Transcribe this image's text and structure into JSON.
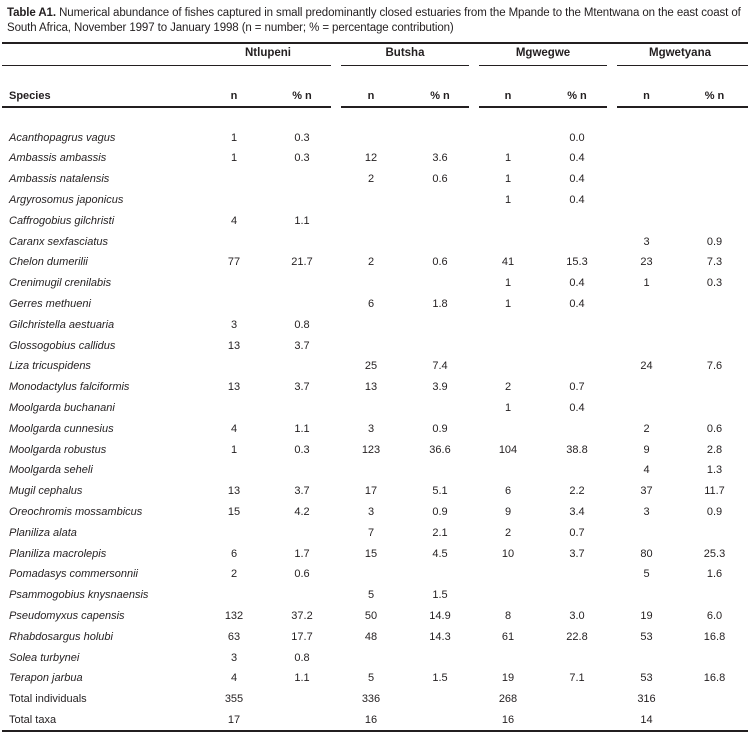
{
  "caption": {
    "label": "Table A1.",
    "text": "Numerical abundance of fishes captured in small predominantly closed estuaries from the Mpande to the Mtentwana on the east coast of South Africa, November 1997 to January 1998 (n = number; % = percentage contribution)"
  },
  "table": {
    "species_header": "Species",
    "groups": [
      {
        "name": "Ntlupeni"
      },
      {
        "name": "Butsha"
      },
      {
        "name": "Mgwegwe"
      },
      {
        "name": "Mgwetyana"
      }
    ],
    "subheaders": {
      "n": "n",
      "pct": "% n"
    },
    "rows": [
      {
        "species": "Acanthopagrus vagus",
        "italic": true,
        "values": [
          "1",
          "0.3",
          "",
          "",
          "",
          "0.0",
          "",
          ""
        ]
      },
      {
        "species": "Ambassis ambassis",
        "italic": true,
        "values": [
          "1",
          "0.3",
          "12",
          "3.6",
          "1",
          "0.4",
          "",
          ""
        ]
      },
      {
        "species": "Ambassis natalensis",
        "italic": true,
        "values": [
          "",
          "",
          "2",
          "0.6",
          "1",
          "0.4",
          "",
          ""
        ]
      },
      {
        "species": "Argyrosomus japonicus",
        "italic": true,
        "values": [
          "",
          "",
          "",
          "",
          "1",
          "0.4",
          "",
          ""
        ]
      },
      {
        "species": "Caffrogobius gilchristi",
        "italic": true,
        "values": [
          "4",
          "1.1",
          "",
          "",
          "",
          "",
          "",
          ""
        ]
      },
      {
        "species": "Caranx sexfasciatus",
        "italic": true,
        "values": [
          "",
          "",
          "",
          "",
          "",
          "",
          "3",
          "0.9"
        ]
      },
      {
        "species": "Chelon dumerilii",
        "italic": true,
        "values": [
          "77",
          "21.7",
          "2",
          "0.6",
          "41",
          "15.3",
          "23",
          "7.3"
        ]
      },
      {
        "species": "Crenimugil crenilabis",
        "italic": true,
        "values": [
          "",
          "",
          "",
          "",
          "1",
          "0.4",
          "1",
          "0.3"
        ]
      },
      {
        "species": "Gerres methueni",
        "italic": true,
        "values": [
          "",
          "",
          "6",
          "1.8",
          "1",
          "0.4",
          "",
          ""
        ]
      },
      {
        "species": "Gilchristella aestuaria",
        "italic": true,
        "values": [
          "3",
          "0.8",
          "",
          "",
          "",
          "",
          "",
          ""
        ]
      },
      {
        "species": "Glossogobius callidus",
        "italic": true,
        "values": [
          "13",
          "3.7",
          "",
          "",
          "",
          "",
          "",
          ""
        ]
      },
      {
        "species": "Liza tricuspidens",
        "italic": true,
        "values": [
          "",
          "",
          "25",
          "7.4",
          "",
          "",
          "24",
          "7.6"
        ]
      },
      {
        "species": "Monodactylus falciformis",
        "italic": true,
        "values": [
          "13",
          "3.7",
          "13",
          "3.9",
          "2",
          "0.7",
          "",
          ""
        ]
      },
      {
        "species": "Moolgarda buchanani",
        "italic": true,
        "values": [
          "",
          "",
          "",
          "",
          "1",
          "0.4",
          "",
          ""
        ]
      },
      {
        "species": "Moolgarda cunnesius",
        "italic": true,
        "values": [
          "4",
          "1.1",
          "3",
          "0.9",
          "",
          "",
          "2",
          "0.6"
        ]
      },
      {
        "species": "Moolgarda robustus",
        "italic": true,
        "values": [
          "1",
          "0.3",
          "123",
          "36.6",
          "104",
          "38.8",
          "9",
          "2.8"
        ]
      },
      {
        "species": "Moolgarda seheli",
        "italic": true,
        "values": [
          "",
          "",
          "",
          "",
          "",
          "",
          "4",
          "1.3"
        ]
      },
      {
        "species": "Mugil cephalus",
        "italic": true,
        "values": [
          "13",
          "3.7",
          "17",
          "5.1",
          "6",
          "2.2",
          "37",
          "11.7"
        ]
      },
      {
        "species": "Oreochromis mossambicus",
        "italic": true,
        "values": [
          "15",
          "4.2",
          "3",
          "0.9",
          "9",
          "3.4",
          "3",
          "0.9"
        ]
      },
      {
        "species": "Planiliza alata",
        "italic": true,
        "values": [
          "",
          "",
          "7",
          "2.1",
          "2",
          "0.7",
          "",
          ""
        ]
      },
      {
        "species": "Planiliza macrolepis",
        "italic": true,
        "values": [
          "6",
          "1.7",
          "15",
          "4.5",
          "10",
          "3.7",
          "80",
          "25.3"
        ]
      },
      {
        "species": "Pomadasys commersonnii",
        "italic": true,
        "values": [
          "2",
          "0.6",
          "",
          "",
          "",
          "",
          "5",
          "1.6"
        ]
      },
      {
        "species": "Psammogobius knysnaensis",
        "italic": true,
        "values": [
          "",
          "",
          "5",
          "1.5",
          "",
          "",
          "",
          ""
        ]
      },
      {
        "species": "Pseudomyxus capensis",
        "italic": true,
        "values": [
          "132",
          "37.2",
          "50",
          "14.9",
          "8",
          "3.0",
          "19",
          "6.0"
        ]
      },
      {
        "species": "Rhabdosargus holubi",
        "italic": true,
        "values": [
          "63",
          "17.7",
          "48",
          "14.3",
          "61",
          "22.8",
          "53",
          "16.8"
        ]
      },
      {
        "species": "Solea turbynei",
        "italic": true,
        "values": [
          "3",
          "0.8",
          "",
          "",
          "",
          "",
          "",
          ""
        ]
      },
      {
        "species": "Terapon jarbua",
        "italic": true,
        "values": [
          "4",
          "1.1",
          "5",
          "1.5",
          "19",
          "7.1",
          "53",
          "16.8"
        ]
      },
      {
        "species": "Total individuals",
        "italic": false,
        "values": [
          "355",
          "",
          "336",
          "",
          "268",
          "",
          "316",
          ""
        ]
      },
      {
        "species": "Total taxa",
        "italic": false,
        "values": [
          "17",
          "",
          "16",
          "",
          "16",
          "",
          "14",
          ""
        ]
      }
    ]
  }
}
